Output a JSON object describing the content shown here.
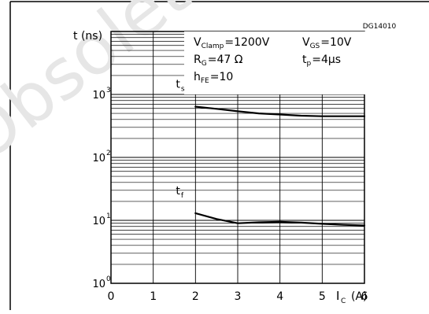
{
  "figure": {
    "id_code": "DG14010",
    "watermark": "Obsolete Pro"
  },
  "chart_data": {
    "type": "line",
    "title": "",
    "ylabel": "t (ns)",
    "xlabel": "I_C (A)",
    "xlabel_main": "I",
    "xlabel_sub": "C",
    "xlabel_unit": "(A)",
    "y_scale": "log",
    "ylim": [
      1,
      10000
    ],
    "xlim": [
      0,
      6
    ],
    "x_ticks": [
      "0",
      "1",
      "2",
      "3",
      "4",
      "5",
      "6"
    ],
    "y_ticks": [
      {
        "base": "10",
        "exp": "0",
        "value": 1
      },
      {
        "base": "10",
        "exp": "1",
        "value": 10
      },
      {
        "base": "10",
        "exp": "2",
        "value": 100
      },
      {
        "base": "10",
        "exp": "3",
        "value": 1000
      }
    ],
    "grid": true,
    "conditions": [
      {
        "main": "V",
        "sub": "Clamp",
        "rest": "=1200V"
      },
      {
        "main": "V",
        "sub": "GS",
        "rest": "=10V"
      },
      {
        "main": "R",
        "sub": "G",
        "rest": "=47 Ω"
      },
      {
        "main": "t",
        "sub": "p",
        "rest": "=4μs"
      },
      {
        "main": "h",
        "sub": "FE",
        "rest": "=10"
      }
    ],
    "series": [
      {
        "name": "ts",
        "label_main": "t",
        "label_sub": "s",
        "x": [
          2,
          2.5,
          3,
          3.5,
          4,
          4.5,
          5,
          5.5,
          6
        ],
        "y": [
          640,
          590,
          540,
          500,
          480,
          460,
          450,
          450,
          450
        ]
      },
      {
        "name": "tf",
        "label_main": "t",
        "label_sub": "f",
        "x": [
          2,
          2.5,
          3,
          3.5,
          4,
          4.5,
          5,
          5.5,
          6
        ],
        "y": [
          13,
          10.5,
          9,
          9.3,
          9.5,
          9.2,
          8.8,
          8.5,
          8.3
        ]
      }
    ]
  }
}
